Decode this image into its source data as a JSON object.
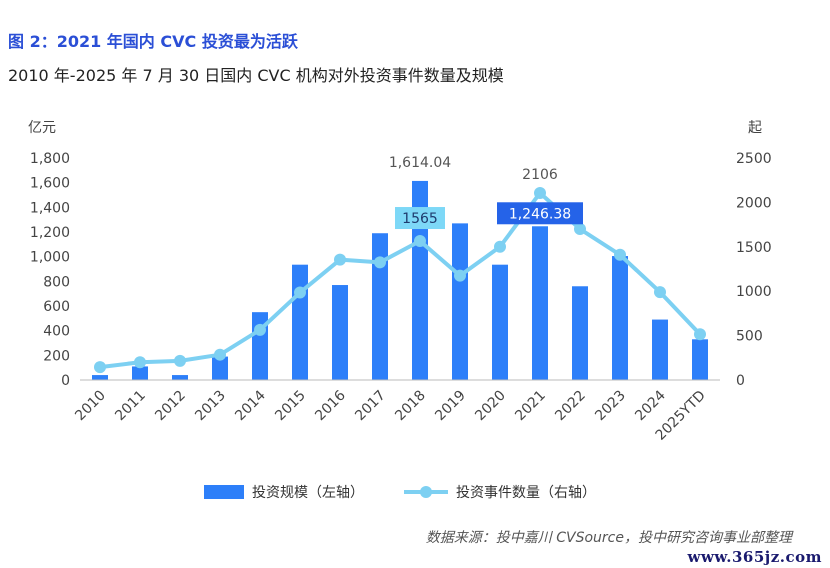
{
  "figure": {
    "label": "图 2：2021 年国内 CVC 投资最为活跃",
    "subtitle": "2010 年-2025 年 7 月 30 日国内 CVC 机构对外投资事件数量及规模",
    "source": "数据来源：投中嘉川 CVSource，投中研究咨询事业部整理",
    "watermark": "www.365jz.com"
  },
  "colors": {
    "bar": "#2d7ff9",
    "line": "#7dd0f2",
    "marker": "#7dd0f2",
    "callout_light": "#7dd8f7",
    "callout_dark": "#2563e8",
    "axis_text": "#444444"
  },
  "chart_data": {
    "type": "bar",
    "categories": [
      "2010",
      "2011",
      "2012",
      "2013",
      "2014",
      "2015",
      "2016",
      "2017",
      "2018",
      "2019",
      "2020",
      "2021",
      "2022",
      "2023",
      "2024",
      "2025YTD"
    ],
    "series": [
      {
        "name": "投资规模（左轴）",
        "type": "bar",
        "axis": "left",
        "values": [
          40,
          110,
          40,
          190,
          550,
          935,
          770,
          1190,
          1614.04,
          1270,
          935,
          1246.38,
          760,
          1005,
          490,
          330
        ]
      },
      {
        "name": "投资事件数量（右轴）",
        "type": "line",
        "axis": "right",
        "values": [
          145,
          200,
          215,
          285,
          565,
          985,
          1355,
          1325,
          1565,
          1175,
          1500,
          2106,
          1700,
          1410,
          990,
          515
        ]
      }
    ],
    "y_left": {
      "label": "亿元",
      "ylim": [
        0,
        1800
      ],
      "ticks": [
        "0",
        "200",
        "400",
        "600",
        "800",
        "1,000",
        "1,200",
        "1,400",
        "1,600",
        "1,800"
      ]
    },
    "y_right": {
      "label": "起",
      "ylim": [
        0,
        2500
      ],
      "ticks": [
        "0",
        "500",
        "1000",
        "1500",
        "2000",
        "2500"
      ]
    },
    "annotations": [
      {
        "series": 0,
        "index": 8,
        "text": "1,614.04",
        "style": "plain"
      },
      {
        "series": 1,
        "index": 11,
        "text": "2106",
        "style": "plain"
      },
      {
        "series": 1,
        "index": 8,
        "text": "1565",
        "style": "box-light"
      },
      {
        "series": 0,
        "index": 11,
        "text": "1,246.38",
        "style": "box-dark"
      }
    ],
    "grid": false,
    "legend_position": "bottom",
    "legend": [
      {
        "label": "投资规模（左轴）",
        "kind": "bar"
      },
      {
        "label": "投资事件数量（右轴）",
        "kind": "line"
      }
    ]
  }
}
